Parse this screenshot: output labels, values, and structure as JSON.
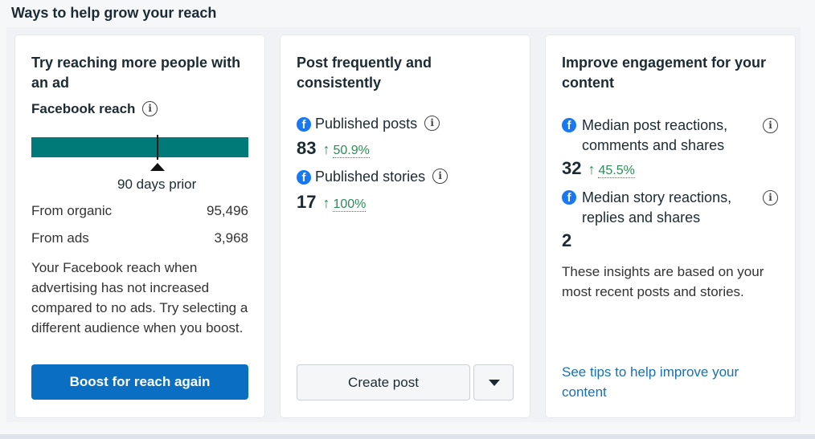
{
  "section_title": "Ways to help grow your reach",
  "card1": {
    "title": "Try reaching more people with an ad",
    "reach_label": "Facebook reach",
    "prior_label": "90 days prior",
    "rows": [
      {
        "label": "From organic",
        "value": "95,496"
      },
      {
        "label": "From ads",
        "value": "3,968"
      }
    ],
    "description": "Your Facebook reach when advertising has not increased compared to no ads. Try selecting a different audience when you boost.",
    "boost_button": "Boost for reach again"
  },
  "card2": {
    "title": "Post frequently and consistently",
    "metrics": [
      {
        "label": "Published posts",
        "value": "83",
        "change": "50.9%"
      },
      {
        "label": "Published stories",
        "value": "17",
        "change": "100%"
      }
    ],
    "create_button": "Create post"
  },
  "card3": {
    "title": "Improve engagement for your content",
    "metrics": [
      {
        "label": "Median post reactions, comments and shares",
        "value": "32",
        "change": "45.5%"
      },
      {
        "label": "Median story reactions, replies and shares",
        "value": "2"
      }
    ],
    "description": "These insights are based on your most recent posts and stories.",
    "tips_link": "See tips to help improve your content"
  },
  "colors": {
    "reach_bar": "#007a78",
    "boost_button": "#0a6fc2",
    "positive_change": "#2e8b57",
    "facebook_blue": "#1877f2",
    "link": "#1a6fb0"
  },
  "icons": {
    "info": "info-icon",
    "facebook": "facebook-icon",
    "up_arrow": "arrow-up-icon",
    "dropdown": "caret-down-icon"
  }
}
